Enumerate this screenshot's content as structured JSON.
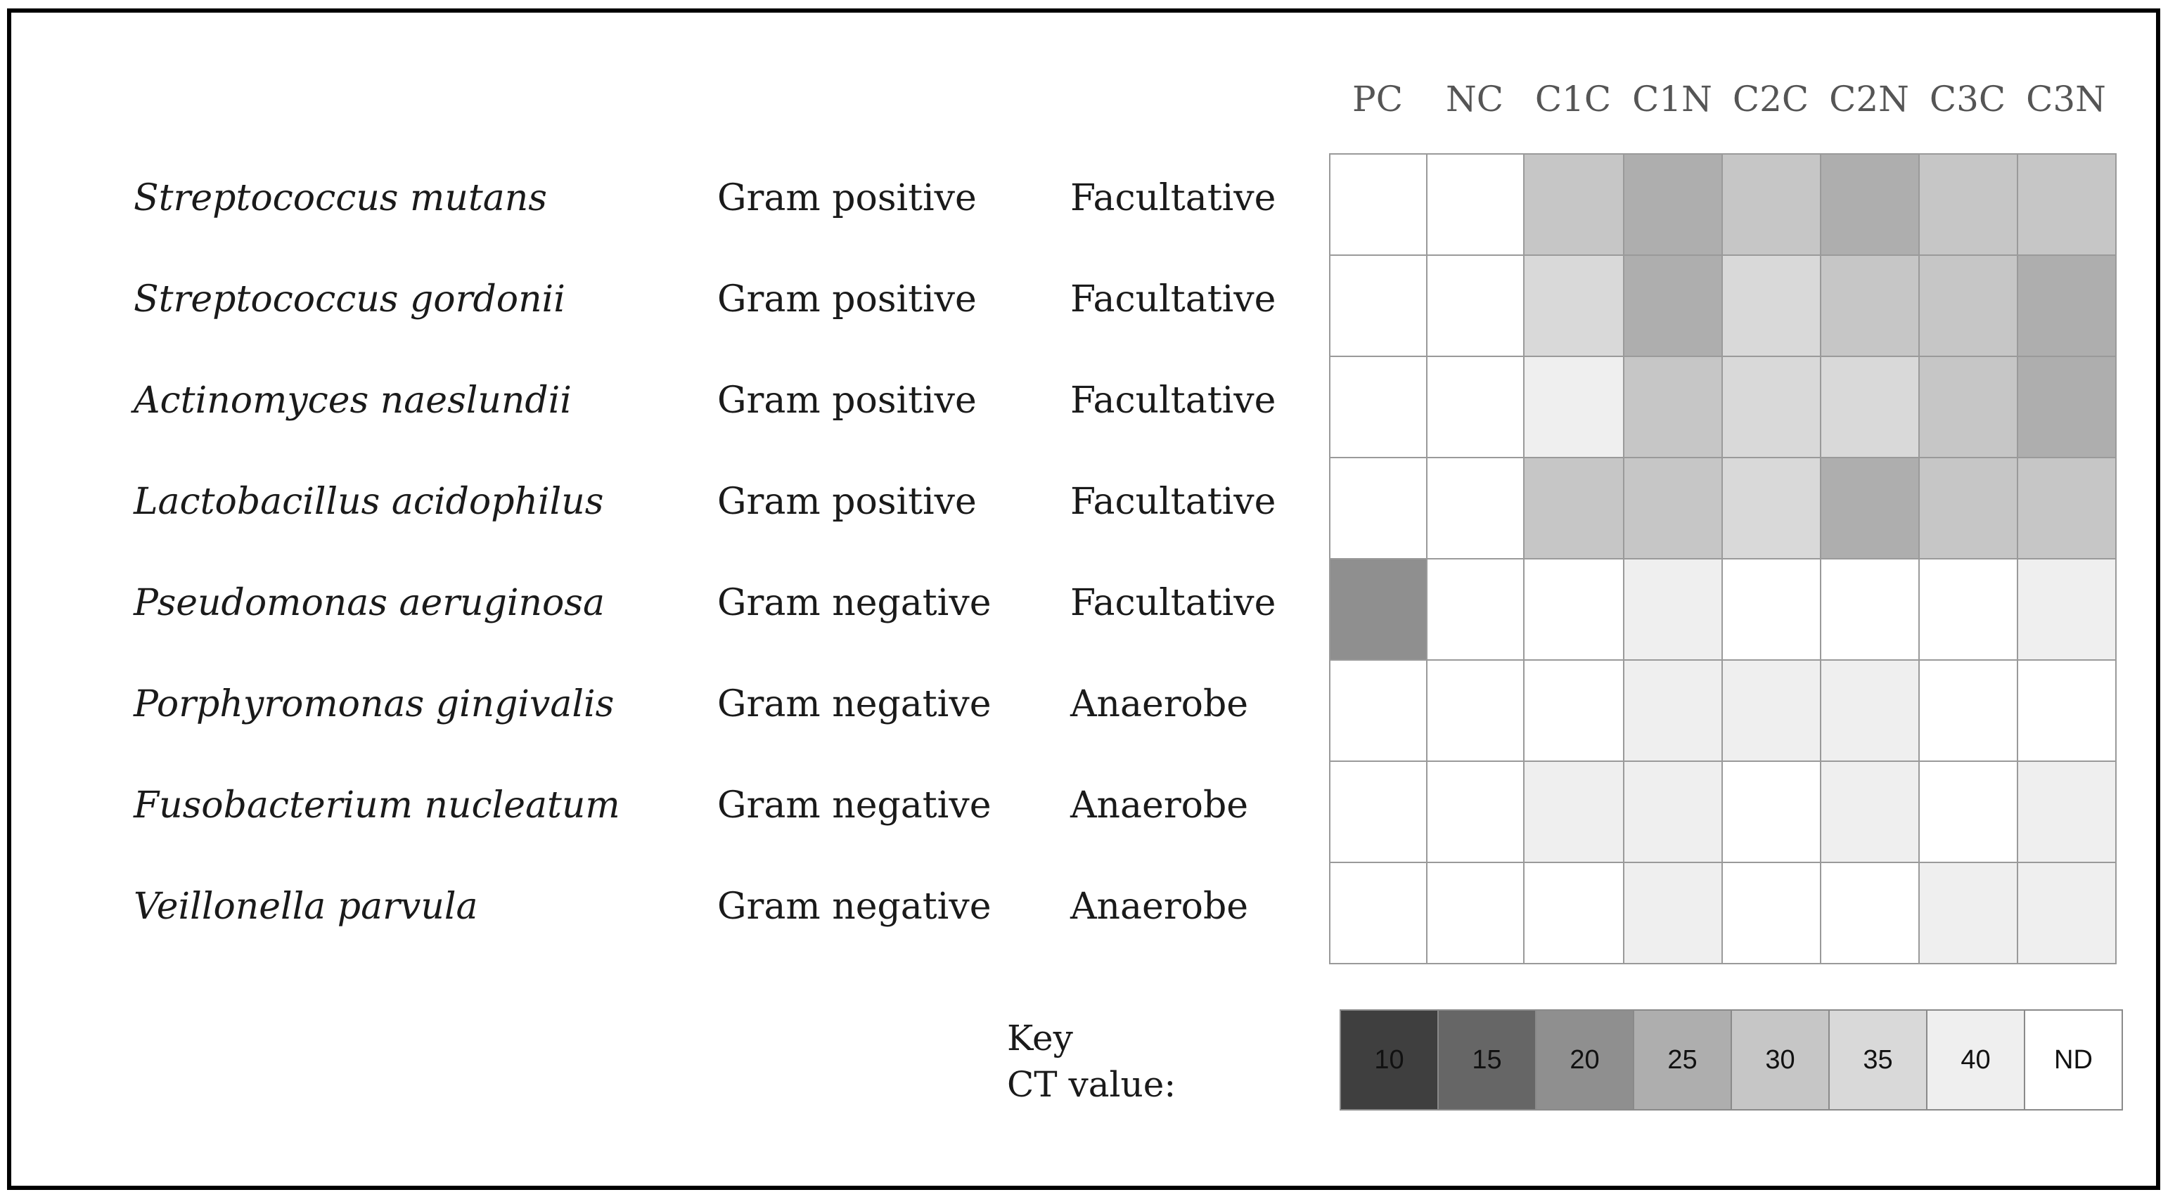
{
  "chart_data": {
    "type": "heatmap",
    "title": "",
    "columns": [
      "PC",
      "NC",
      "C1C",
      "C1N",
      "C2C",
      "C2N",
      "C3C",
      "C3N"
    ],
    "rows": [
      {
        "species": "Streptococcus mutans",
        "gram": "Gram positive",
        "oxygen": "Facultative",
        "values": [
          "ND",
          "ND",
          30,
          25,
          30,
          25,
          30,
          30
        ]
      },
      {
        "species": "Streptococcus gordonii",
        "gram": "Gram positive",
        "oxygen": "Facultative",
        "values": [
          "ND",
          "ND",
          35,
          25,
          35,
          30,
          30,
          25
        ]
      },
      {
        "species": "Actinomyces naeslundii",
        "gram": "Gram positive",
        "oxygen": "Facultative",
        "values": [
          "ND",
          "ND",
          40,
          30,
          35,
          35,
          30,
          25
        ]
      },
      {
        "species": "Lactobacillus acidophilus",
        "gram": "Gram positive",
        "oxygen": "Facultative",
        "values": [
          "ND",
          "ND",
          30,
          30,
          35,
          25,
          30,
          30
        ]
      },
      {
        "species": "Pseudomonas aeruginosa",
        "gram": "Gram negative",
        "oxygen": "Facultative",
        "values": [
          20,
          "ND",
          "ND",
          40,
          "ND",
          "ND",
          "ND",
          40
        ]
      },
      {
        "species": "Porphyromonas gingivalis",
        "gram": "Gram negative",
        "oxygen": "Anaerobe",
        "values": [
          "ND",
          "ND",
          "ND",
          40,
          40,
          40,
          "ND",
          "ND"
        ]
      },
      {
        "species": "Fusobacterium nucleatum",
        "gram": "Gram negative",
        "oxygen": "Anaerobe",
        "values": [
          "ND",
          "ND",
          40,
          40,
          "ND",
          40,
          "ND",
          40
        ]
      },
      {
        "species": "Veillonella parvula",
        "gram": "Gram negative",
        "oxygen": "Anaerobe",
        "values": [
          "ND",
          "ND",
          "ND",
          40,
          "ND",
          "ND",
          40,
          40
        ]
      }
    ],
    "key": {
      "title_line1": "Key",
      "title_line2": "CT value:",
      "items": [
        {
          "label": "10",
          "color": "#3f3f3f"
        },
        {
          "label": "15",
          "color": "#666666"
        },
        {
          "label": "20",
          "color": "#8f8f8f"
        },
        {
          "label": "25",
          "color": "#aeaeae"
        },
        {
          "label": "30",
          "color": "#c6c6c6"
        },
        {
          "label": "35",
          "color": "#d9d9d9"
        },
        {
          "label": "40",
          "color": "#efefef"
        },
        {
          "label": "ND",
          "color": "#ffffff"
        }
      ]
    }
  }
}
